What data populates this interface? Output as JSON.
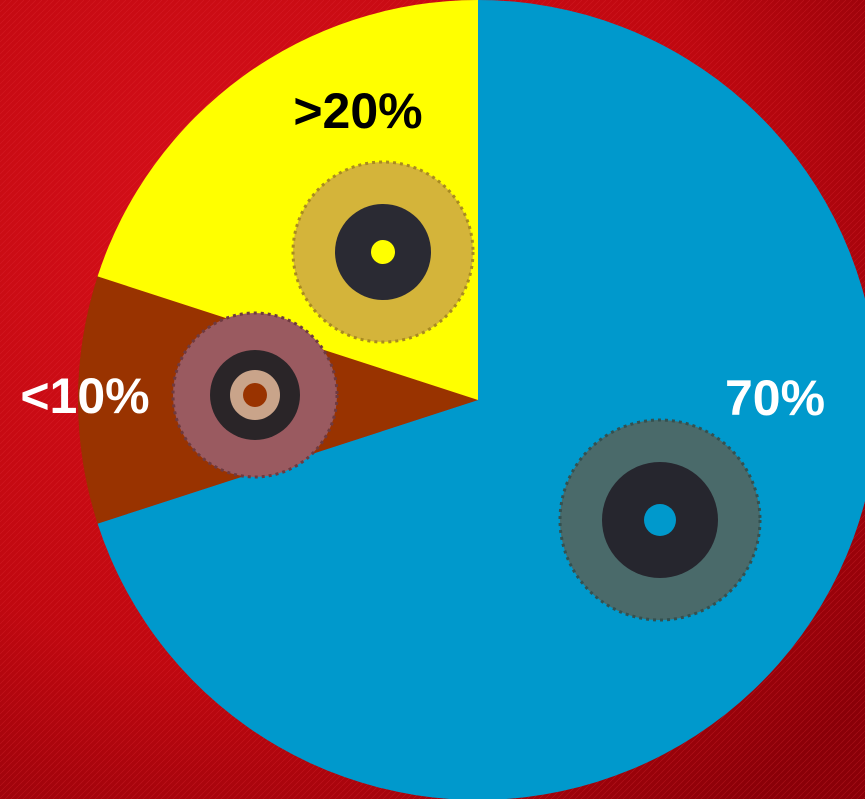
{
  "chart_data": {
    "type": "pie",
    "values": [
      70,
      10,
      20
    ],
    "value_labels": [
      "70%",
      "<10%",
      ">20%"
    ],
    "colors": [
      "#0099cc",
      "#993300",
      "#ffff00"
    ],
    "start_angle": 90,
    "direction": "clockwise"
  }
}
